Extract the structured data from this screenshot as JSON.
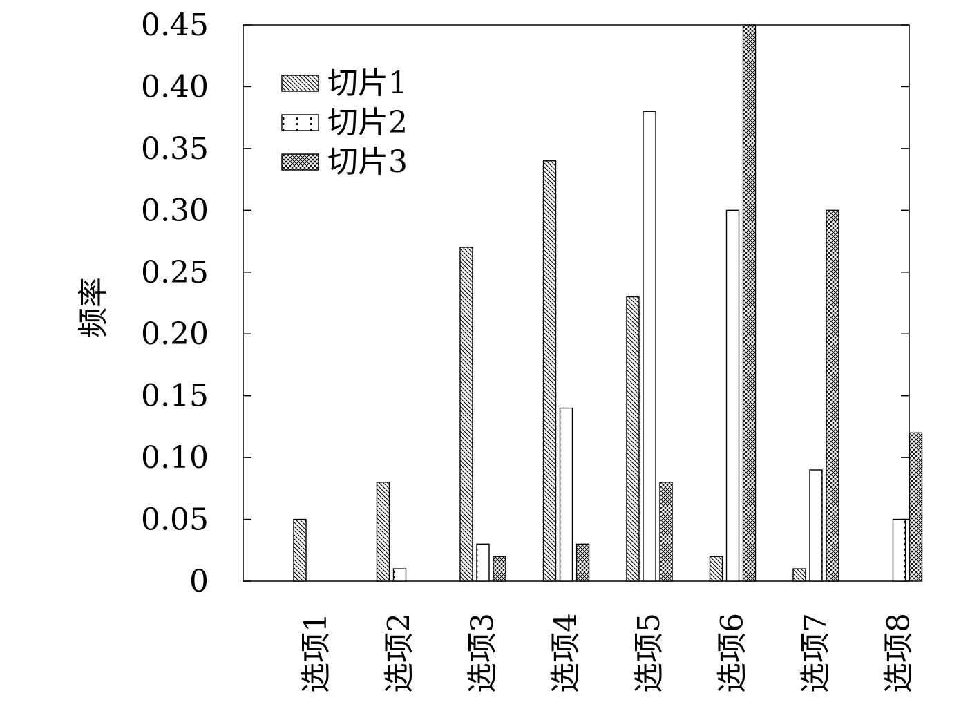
{
  "chart_data": {
    "type": "bar",
    "categories": [
      "选项1",
      "选项2",
      "选项3",
      "选项4",
      "选项5",
      "选项6",
      "选项7",
      "选项8"
    ],
    "series": [
      {
        "name": "切片1",
        "pattern": "diagonal-hatch",
        "values": [
          0.05,
          0.08,
          0.27,
          0.34,
          0.23,
          0.02,
          0.01,
          0.0
        ]
      },
      {
        "name": "切片2",
        "pattern": "dots",
        "values": [
          0.0,
          0.01,
          0.03,
          0.14,
          0.38,
          0.3,
          0.09,
          0.05
        ]
      },
      {
        "name": "切片3",
        "pattern": "crosshatch",
        "values": [
          0.0,
          0.0,
          0.02,
          0.03,
          0.08,
          0.45,
          0.3,
          0.12
        ]
      }
    ],
    "title": "",
    "xlabel": "",
    "ylabel": "频率",
    "ylim": [
      0,
      0.45
    ],
    "yticks": [
      {
        "value": 0,
        "label": "0"
      },
      {
        "value": 0.05,
        "label": "0.05"
      },
      {
        "value": 0.1,
        "label": "0.10"
      },
      {
        "value": 0.15,
        "label": "0.15"
      },
      {
        "value": 0.2,
        "label": "0.20"
      },
      {
        "value": 0.25,
        "label": "0.25"
      },
      {
        "value": 0.3,
        "label": "0.30"
      },
      {
        "value": 0.35,
        "label": "0.35"
      },
      {
        "value": 0.4,
        "label": "0.40"
      },
      {
        "value": 0.45,
        "label": "0.45"
      }
    ],
    "grid": false,
    "legend": "top-left"
  }
}
